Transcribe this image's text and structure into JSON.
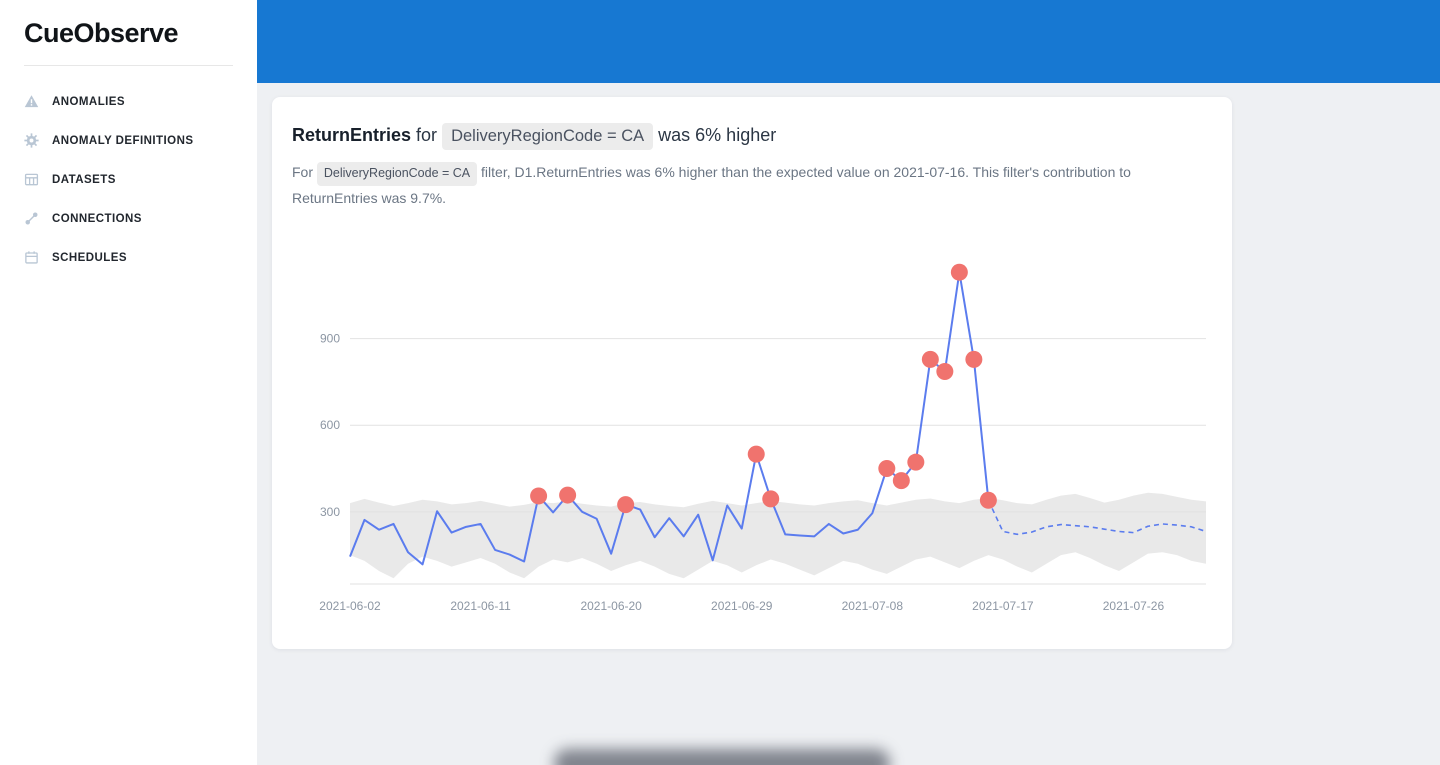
{
  "sidebar": {
    "logo": "CueObserve",
    "items": [
      {
        "label": "ANOMALIES",
        "icon": "warning-icon"
      },
      {
        "label": "ANOMALY DEFINITIONS",
        "icon": "gear-icon"
      },
      {
        "label": "DATASETS",
        "icon": "table-icon"
      },
      {
        "label": "CONNECTIONS",
        "icon": "link-icon"
      },
      {
        "label": "SCHEDULES",
        "icon": "calendar-icon"
      }
    ]
  },
  "card": {
    "title": {
      "metric": "ReturnEntries",
      "connector": "for",
      "chip": "DeliveryRegionCode = CA",
      "suffix": "was 6% higher"
    },
    "subtitle": {
      "prefix": "For",
      "chip": "DeliveryRegionCode = CA",
      "suffix": "filter, D1.ReturnEntries was 6% higher than the expected value on 2021-07-16. This filter's contribution to ReturnEntries was 9.7%."
    }
  },
  "colors": {
    "header_bar": "#1778d2",
    "line": "#5b7cee",
    "anomaly_dot": "#f0736e",
    "band": "#e9e9e9",
    "grid": "#e2e2e2",
    "tick_text": "#8c96a3"
  },
  "chart_data": {
    "type": "line",
    "title": "",
    "xlabel": "",
    "ylabel": "",
    "ylim": [
      50,
      1200
    ],
    "yticks": [
      300,
      600,
      900
    ],
    "xticks": [
      "2021-06-02",
      "2021-06-11",
      "2021-06-20",
      "2021-06-29",
      "2021-07-08",
      "2021-07-17",
      "2021-07-26"
    ],
    "x_dates": [
      "2021-06-02",
      "2021-06-03",
      "2021-06-04",
      "2021-06-05",
      "2021-06-06",
      "2021-06-07",
      "2021-06-08",
      "2021-06-09",
      "2021-06-10",
      "2021-06-11",
      "2021-06-12",
      "2021-06-13",
      "2021-06-14",
      "2021-06-15",
      "2021-06-16",
      "2021-06-17",
      "2021-06-18",
      "2021-06-19",
      "2021-06-20",
      "2021-06-21",
      "2021-06-22",
      "2021-06-23",
      "2021-06-24",
      "2021-06-25",
      "2021-06-26",
      "2021-06-27",
      "2021-06-28",
      "2021-06-29",
      "2021-06-30",
      "2021-07-01",
      "2021-07-02",
      "2021-07-03",
      "2021-07-04",
      "2021-07-05",
      "2021-07-06",
      "2021-07-07",
      "2021-07-08",
      "2021-07-09",
      "2021-07-10",
      "2021-07-11",
      "2021-07-12",
      "2021-07-13",
      "2021-07-14",
      "2021-07-15",
      "2021-07-16",
      "2021-07-17",
      "2021-07-18",
      "2021-07-19",
      "2021-07-20",
      "2021-07-21",
      "2021-07-22",
      "2021-07-23",
      "2021-07-24",
      "2021-07-25",
      "2021-07-26",
      "2021-07-27",
      "2021-07-28",
      "2021-07-29",
      "2021-07-30",
      "2021-07-31"
    ],
    "series": [
      {
        "name": "actual",
        "style": "solid",
        "start_index": 0,
        "values": [
          145,
          272,
          238,
          258,
          160,
          118,
          302,
          228,
          248,
          258,
          168,
          152,
          128,
          355,
          298,
          358,
          300,
          276,
          155,
          325,
          308,
          212,
          278,
          215,
          290,
          132,
          322,
          242,
          500,
          345,
          222,
          218,
          215,
          258,
          225,
          238,
          295,
          450,
          408,
          472,
          828,
          786,
          1130,
          828,
          340
        ]
      },
      {
        "name": "predicted",
        "style": "dashed",
        "start_index": 44,
        "values": [
          340,
          232,
          222,
          230,
          248,
          256,
          252,
          248,
          240,
          232,
          228,
          250,
          258,
          254,
          248,
          232
        ]
      }
    ],
    "band": {
      "upper": [
        330,
        345,
        332,
        320,
        330,
        342,
        336,
        326,
        330,
        338,
        328,
        318,
        324,
        334,
        330,
        336,
        328,
        322,
        318,
        330,
        334,
        326,
        320,
        316,
        328,
        338,
        330,
        322,
        330,
        338,
        332,
        326,
        322,
        330,
        336,
        340,
        330,
        322,
        332,
        342,
        346,
        336,
        330,
        342,
        348,
        340,
        330,
        326,
        342,
        356,
        362,
        348,
        332,
        342,
        356,
        366,
        362,
        352,
        342,
        336
      ],
      "lower": [
        150,
        130,
        95,
        70,
        120,
        145,
        130,
        110,
        125,
        140,
        120,
        90,
        70,
        110,
        135,
        125,
        140,
        120,
        95,
        115,
        130,
        110,
        85,
        70,
        100,
        130,
        115,
        90,
        115,
        135,
        120,
        100,
        80,
        105,
        130,
        120,
        100,
        85,
        110,
        135,
        145,
        125,
        105,
        130,
        150,
        135,
        110,
        90,
        120,
        150,
        160,
        140,
        115,
        95,
        125,
        155,
        160,
        150,
        130,
        120
      ]
    },
    "anomalies": [
      {
        "date": "2021-06-15",
        "value": 355
      },
      {
        "date": "2021-06-17",
        "value": 358
      },
      {
        "date": "2021-06-21",
        "value": 325
      },
      {
        "date": "2021-06-30",
        "value": 500
      },
      {
        "date": "2021-07-01",
        "value": 345
      },
      {
        "date": "2021-07-09",
        "value": 450
      },
      {
        "date": "2021-07-10",
        "value": 408
      },
      {
        "date": "2021-07-11",
        "value": 472
      },
      {
        "date": "2021-07-12",
        "value": 828
      },
      {
        "date": "2021-07-13",
        "value": 786
      },
      {
        "date": "2021-07-14",
        "value": 1130
      },
      {
        "date": "2021-07-15",
        "value": 828
      },
      {
        "date": "2021-07-16",
        "value": 340
      }
    ],
    "legend": "off",
    "grid": "horizontal-only"
  }
}
